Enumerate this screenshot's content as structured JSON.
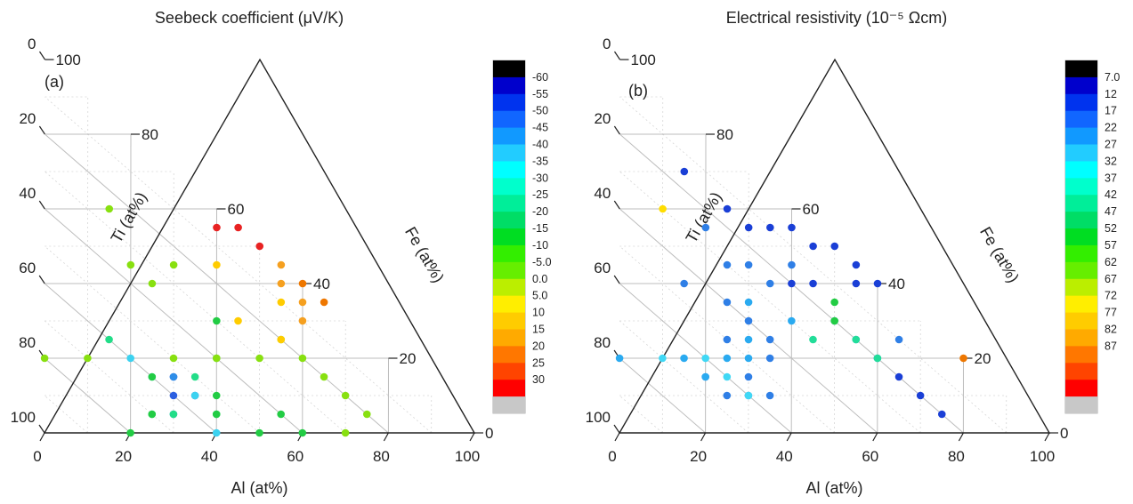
{
  "chart_data": [
    {
      "type": "scatter",
      "subtype": "ternary",
      "panel_label": "(a)",
      "title": "Seebeck coefficient (μV/K)",
      "axes": {
        "bottom": {
          "label": "Al (at%)",
          "ticks": [
            0,
            20,
            40,
            60,
            80,
            100
          ]
        },
        "left": {
          "label": "Ti (at%)",
          "ticks": [
            0,
            20,
            40,
            60,
            80,
            100
          ]
        },
        "right": {
          "label": "Fe (at%)",
          "ticks": [
            0,
            20,
            40,
            60,
            80,
            100
          ]
        }
      },
      "grid": true,
      "colorbar": {
        "labels": [
          "-60",
          "-55",
          "-50",
          "-45",
          "-40",
          "-35",
          "-30",
          "-25",
          "-20",
          "-15",
          "-10",
          "-5.0",
          "0.0",
          "5.0",
          "10",
          "15",
          "20",
          "25",
          "30"
        ],
        "colors": [
          "#000000",
          "#0000cc",
          "#0033ee",
          "#1166ff",
          "#1199ff",
          "#22ccff",
          "#00ffff",
          "#00ffcc",
          "#00ee99",
          "#00dd66",
          "#00dd22",
          "#33ee00",
          "#66ee00",
          "#bbee00",
          "#ffee00",
          "#ffcc00",
          "#ffaa00",
          "#ff7700",
          "#ff4400",
          "#ff0000",
          "#c8c8c8"
        ]
      },
      "points": [
        {
          "al": 30,
          "fe": 15,
          "ti": 55,
          "color": "#1f3fcc"
        },
        {
          "al": 35,
          "fe": 10,
          "ti": 55,
          "color": "#1f3fcc"
        },
        {
          "al": 30,
          "fe": 10,
          "ti": 60,
          "color": "#2b5fe0"
        },
        {
          "al": 30,
          "fe": 5,
          "ti": 65,
          "color": "#2f8ee8"
        },
        {
          "al": 30,
          "fe": 15,
          "ti": 55,
          "color": "#2f8ee8"
        },
        {
          "al": 25,
          "fe": 15,
          "ti": 60,
          "color": "#3cd2f0"
        },
        {
          "al": 20,
          "fe": 20,
          "ti": 60,
          "color": "#3cd2f0"
        },
        {
          "al": 35,
          "fe": 10,
          "ti": 55,
          "color": "#3cd2f0"
        },
        {
          "al": 40,
          "fe": 0,
          "ti": 60,
          "color": "#3cd2f0"
        },
        {
          "al": 15,
          "fe": 25,
          "ti": 60,
          "color": "#22dd88"
        },
        {
          "al": 25,
          "fe": 5,
          "ti": 70,
          "color": "#22dd88"
        },
        {
          "al": 30,
          "fe": 5,
          "ti": 65,
          "color": "#22dd88"
        },
        {
          "al": 40,
          "fe": 5,
          "ti": 55,
          "color": "#22dd88"
        },
        {
          "al": 35,
          "fe": 15,
          "ti": 50,
          "color": "#22dd88"
        },
        {
          "al": 20,
          "fe": 0,
          "ti": 80,
          "color": "#22cc44"
        },
        {
          "al": 25,
          "fe": 5,
          "ti": 70,
          "color": "#22cc44"
        },
        {
          "al": 40,
          "fe": 5,
          "ti": 55,
          "color": "#22cc44"
        },
        {
          "al": 50,
          "fe": 0,
          "ti": 50,
          "color": "#22cc44"
        },
        {
          "al": 55,
          "fe": 5,
          "ti": 40,
          "color": "#22cc44"
        },
        {
          "al": 60,
          "fe": 0,
          "ti": 40,
          "color": "#22cc44"
        },
        {
          "al": 40,
          "fe": 10,
          "ti": 50,
          "color": "#22cc44"
        },
        {
          "al": 40,
          "fe": 20,
          "ti": 40,
          "color": "#22cc44"
        },
        {
          "al": 40,
          "fe": 30,
          "ti": 30,
          "color": "#22cc44"
        },
        {
          "al": 25,
          "fe": 15,
          "ti": 60,
          "color": "#22cc44"
        },
        {
          "al": 0,
          "fe": 20,
          "ti": 80,
          "color": "#88e010"
        },
        {
          "al": 10,
          "fe": 20,
          "ti": 70,
          "color": "#88e010"
        },
        {
          "al": 30,
          "fe": 20,
          "ti": 50,
          "color": "#88e010"
        },
        {
          "al": 40,
          "fe": 20,
          "ti": 40,
          "color": "#88e010"
        },
        {
          "al": 50,
          "fe": 20,
          "ti": 30,
          "color": "#88e010"
        },
        {
          "al": 60,
          "fe": 20,
          "ti": 20,
          "color": "#88e010"
        },
        {
          "al": 55,
          "fe": 25,
          "ti": 20,
          "color": "#88e010"
        },
        {
          "al": 65,
          "fe": 15,
          "ti": 20,
          "color": "#88e010"
        },
        {
          "al": 70,
          "fe": 10,
          "ti": 20,
          "color": "#88e010"
        },
        {
          "al": 75,
          "fe": 5,
          "ti": 20,
          "color": "#88e010"
        },
        {
          "al": 70,
          "fe": 0,
          "ti": 30,
          "color": "#88e010"
        },
        {
          "al": 25,
          "fe": 40,
          "ti": 35,
          "color": "#88e010"
        },
        {
          "al": 20,
          "fe": 45,
          "ti": 35,
          "color": "#88e010"
        },
        {
          "al": 30,
          "fe": 45,
          "ti": 25,
          "color": "#88e010"
        },
        {
          "al": 15,
          "fe": 60,
          "ti": 25,
          "color": "#88e010"
        },
        {
          "al": 45,
          "fe": 30,
          "ti": 25,
          "color": "#ffcc00"
        },
        {
          "al": 40,
          "fe": 45,
          "ti": 15,
          "color": "#ffcc00"
        },
        {
          "al": 55,
          "fe": 35,
          "ti": 10,
          "color": "#ffcc00"
        },
        {
          "al": 55,
          "fe": 25,
          "ti": 20,
          "color": "#ffcc00"
        },
        {
          "al": 60,
          "fe": 30,
          "ti": 10,
          "color": "#f5a020"
        },
        {
          "al": 55,
          "fe": 40,
          "ti": 5,
          "color": "#f5a020"
        },
        {
          "al": 60,
          "fe": 35,
          "ti": 5,
          "color": "#f5a020"
        },
        {
          "al": 55,
          "fe": 45,
          "ti": 0,
          "color": "#f5a020"
        },
        {
          "al": 60,
          "fe": 40,
          "ti": 0,
          "color": "#ee7700"
        },
        {
          "al": 65,
          "fe": 35,
          "ti": 0,
          "color": "#ee7700"
        },
        {
          "al": 45,
          "fe": 55,
          "ti": 0,
          "color": "#e82222"
        },
        {
          "al": 40,
          "fe": 55,
          "ti": 5,
          "color": "#e82222"
        },
        {
          "al": 50,
          "fe": 50,
          "ti": 0,
          "color": "#e82222"
        }
      ]
    },
    {
      "type": "scatter",
      "subtype": "ternary",
      "panel_label": "(b)",
      "title": "Electrical resistivity (10⁻⁵ Ωcm)",
      "axes": {
        "bottom": {
          "label": "Al (at%)",
          "ticks": [
            0,
            20,
            40,
            60,
            80,
            100
          ]
        },
        "left": {
          "label": "Ti (at%)",
          "ticks": [
            0,
            20,
            40,
            60,
            80,
            100
          ]
        },
        "right": {
          "label": "Fe (at%)",
          "ticks": [
            0,
            20,
            40,
            60,
            80,
            100
          ]
        }
      },
      "grid": true,
      "colorbar": {
        "labels": [
          "7.0",
          "12",
          "17",
          "22",
          "27",
          "32",
          "37",
          "42",
          "47",
          "52",
          "57",
          "62",
          "67",
          "72",
          "77",
          "82",
          "87"
        ],
        "colors": [
          "#000000",
          "#0000cc",
          "#0033ee",
          "#1166ff",
          "#1199ff",
          "#22ccff",
          "#00ffff",
          "#00ffcc",
          "#00ee99",
          "#00dd66",
          "#00dd22",
          "#33ee00",
          "#66ee00",
          "#bbee00",
          "#ffee00",
          "#ffcc00",
          "#ffaa00",
          "#ff7700",
          "#ff4400",
          "#ff0000",
          "#c8c8c8"
        ]
      },
      "points": [
        {
          "al": 25,
          "fe": 60,
          "ti": 15,
          "color": "#1a3fd6"
        },
        {
          "al": 30,
          "fe": 55,
          "ti": 15,
          "color": "#1a3fd6"
        },
        {
          "al": 35,
          "fe": 55,
          "ti": 10,
          "color": "#1a3fd6"
        },
        {
          "al": 45,
          "fe": 50,
          "ti": 5,
          "color": "#1a3fd6"
        },
        {
          "al": 40,
          "fe": 55,
          "ti": 5,
          "color": "#1a3fd6"
        },
        {
          "al": 45,
          "fe": 40,
          "ti": 15,
          "color": "#1a3fd6"
        },
        {
          "al": 40,
          "fe": 40,
          "ti": 20,
          "color": "#1a3fd6"
        },
        {
          "al": 55,
          "fe": 40,
          "ti": 5,
          "color": "#1a3fd6"
        },
        {
          "al": 60,
          "fe": 40,
          "ti": 0,
          "color": "#1a3fd6"
        },
        {
          "al": 55,
          "fe": 45,
          "ti": 0,
          "color": "#1a3fd6"
        },
        {
          "al": 50,
          "fe": 50,
          "ti": 0,
          "color": "#1a3fd6"
        },
        {
          "al": 65,
          "fe": 15,
          "ti": 20,
          "color": "#1a3fd6"
        },
        {
          "al": 70,
          "fe": 10,
          "ti": 20,
          "color": "#1a3fd6"
        },
        {
          "al": 75,
          "fe": 5,
          "ti": 20,
          "color": "#1a3fd6"
        },
        {
          "al": 15,
          "fe": 70,
          "ti": 15,
          "color": "#1a3fd6"
        },
        {
          "al": 25,
          "fe": 45,
          "ti": 30,
          "color": "#2f7fe6"
        },
        {
          "al": 30,
          "fe": 45,
          "ti": 25,
          "color": "#2f7fe6"
        },
        {
          "al": 35,
          "fe": 40,
          "ti": 25,
          "color": "#2f7fe6"
        },
        {
          "al": 40,
          "fe": 45,
          "ti": 15,
          "color": "#2f7fe6"
        },
        {
          "al": 20,
          "fe": 55,
          "ti": 25,
          "color": "#2f7fe6"
        },
        {
          "al": 15,
          "fe": 40,
          "ti": 45,
          "color": "#2f7fe6"
        },
        {
          "al": 25,
          "fe": 35,
          "ti": 40,
          "color": "#2f7fe6"
        },
        {
          "al": 30,
          "fe": 30,
          "ti": 40,
          "color": "#2f7fe6"
        },
        {
          "al": 20,
          "fe": 15,
          "ti": 65,
          "color": "#2f7fe6"
        },
        {
          "al": 25,
          "fe": 10,
          "ti": 65,
          "color": "#2f7fe6"
        },
        {
          "al": 30,
          "fe": 10,
          "ti": 60,
          "color": "#2f7fe6"
        },
        {
          "al": 30,
          "fe": 15,
          "ti": 55,
          "color": "#2f7fe6"
        },
        {
          "al": 35,
          "fe": 10,
          "ti": 55,
          "color": "#2f7fe6"
        },
        {
          "al": 25,
          "fe": 25,
          "ti": 50,
          "color": "#2f7fe6"
        },
        {
          "al": 35,
          "fe": 25,
          "ti": 40,
          "color": "#2f7fe6"
        },
        {
          "al": 35,
          "fe": 20,
          "ti": 45,
          "color": "#2f7fe6"
        },
        {
          "al": 60,
          "fe": 20,
          "ti": 20,
          "color": "#2f7fe6"
        },
        {
          "al": 65,
          "fe": 25,
          "ti": 10,
          "color": "#2f7fe6"
        },
        {
          "al": 0,
          "fe": 20,
          "ti": 80,
          "color": "#2aaaf0"
        },
        {
          "al": 15,
          "fe": 20,
          "ti": 65,
          "color": "#2aaaf0"
        },
        {
          "al": 20,
          "fe": 15,
          "ti": 65,
          "color": "#2aaaf0"
        },
        {
          "al": 25,
          "fe": 20,
          "ti": 55,
          "color": "#2aaaf0"
        },
        {
          "al": 30,
          "fe": 25,
          "ti": 45,
          "color": "#2aaaf0"
        },
        {
          "al": 30,
          "fe": 35,
          "ti": 35,
          "color": "#2aaaf0"
        },
        {
          "al": 40,
          "fe": 30,
          "ti": 30,
          "color": "#2aaaf0"
        },
        {
          "al": 50,
          "fe": 30,
          "ti": 20,
          "color": "#2aaaf0"
        },
        {
          "al": 55,
          "fe": 25,
          "ti": 20,
          "color": "#2aaaf0"
        },
        {
          "al": 30,
          "fe": 20,
          "ti": 50,
          "color": "#2aaaf0"
        },
        {
          "al": 20,
          "fe": 20,
          "ti": 60,
          "color": "#40d8f5"
        },
        {
          "al": 25,
          "fe": 15,
          "ti": 60,
          "color": "#40d8f5"
        },
        {
          "al": 30,
          "fe": 10,
          "ti": 60,
          "color": "#40d8f5"
        },
        {
          "al": 10,
          "fe": 20,
          "ti": 70,
          "color": "#40d8f5"
        },
        {
          "al": 60,
          "fe": 20,
          "ti": 20,
          "color": "#22dd99"
        },
        {
          "al": 45,
          "fe": 25,
          "ti": 30,
          "color": "#22dd99"
        },
        {
          "al": 55,
          "fe": 25,
          "ti": 20,
          "color": "#22dd99"
        },
        {
          "al": 50,
          "fe": 30,
          "ti": 20,
          "color": "#22cc44"
        },
        {
          "al": 50,
          "fe": 35,
          "ti": 15,
          "color": "#22cc44"
        },
        {
          "al": 10,
          "fe": 60,
          "ti": 30,
          "color": "#ffdd00"
        },
        {
          "al": 80,
          "fe": 20,
          "ti": 0,
          "color": "#ee7700"
        }
      ]
    }
  ]
}
